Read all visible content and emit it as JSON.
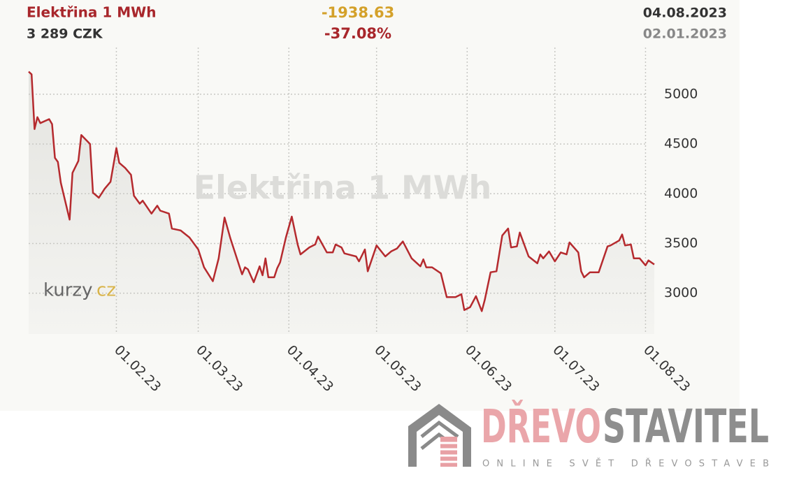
{
  "chart_data": {
    "type": "line",
    "title": "Elektřina 1 MWh",
    "price": "3 289 CZK",
    "change": "-1938.63",
    "change_percent": "-37.08%",
    "date_end": "04.08.2023",
    "date_start": "02.01.2023",
    "logo": [
      "kurzy",
      "cz"
    ],
    "x": [
      "2023-01-02",
      "2023-01-03",
      "2023-01-04",
      "2023-01-05",
      "2023-01-06",
      "2023-01-09",
      "2023-01-10",
      "2023-01-11",
      "2023-01-12",
      "2023-01-13",
      "2023-01-16",
      "2023-01-17",
      "2023-01-19",
      "2023-01-20",
      "2023-01-23",
      "2023-01-24",
      "2023-01-26",
      "2023-01-28",
      "2023-01-30",
      "2023-02-01",
      "2023-02-02",
      "2023-02-04",
      "2023-02-06",
      "2023-02-07",
      "2023-02-09",
      "2023-02-10",
      "2023-02-13",
      "2023-02-15",
      "2023-02-16",
      "2023-02-19",
      "2023-02-20",
      "2023-02-23",
      "2023-02-26",
      "2023-03-01",
      "2023-03-03",
      "2023-03-06",
      "2023-03-08",
      "2023-03-10",
      "2023-03-12",
      "2023-03-15",
      "2023-03-16",
      "2023-03-17",
      "2023-03-18",
      "2023-03-20",
      "2023-03-22",
      "2023-03-23",
      "2023-03-24",
      "2023-03-25",
      "2023-03-27",
      "2023-03-28",
      "2023-03-29",
      "2023-03-31",
      "2023-04-02",
      "2023-04-04",
      "2023-04-05",
      "2023-04-08",
      "2023-04-10",
      "2023-04-11",
      "2023-04-14",
      "2023-04-16",
      "2023-04-17",
      "2023-04-19",
      "2023-04-20",
      "2023-04-24",
      "2023-04-25",
      "2023-04-27",
      "2023-04-28",
      "2023-05-01",
      "2023-05-04",
      "2023-05-06",
      "2023-05-08",
      "2023-05-10",
      "2023-05-13",
      "2023-05-16",
      "2023-05-17",
      "2023-05-18",
      "2023-05-20",
      "2023-05-23",
      "2023-05-25",
      "2023-05-28",
      "2023-05-30",
      "2023-05-31",
      "2023-06-02",
      "2023-06-04",
      "2023-06-06",
      "2023-06-07",
      "2023-06-09",
      "2023-06-11",
      "2023-06-13",
      "2023-06-15",
      "2023-06-16",
      "2023-06-18",
      "2023-06-19",
      "2023-06-22",
      "2023-06-25",
      "2023-06-26",
      "2023-06-27",
      "2023-06-29",
      "2023-07-01",
      "2023-07-03",
      "2023-07-05",
      "2023-07-06",
      "2023-07-09",
      "2023-07-10",
      "2023-07-11",
      "2023-07-13",
      "2023-07-16",
      "2023-07-19",
      "2023-07-20",
      "2023-07-23",
      "2023-07-24",
      "2023-07-25",
      "2023-07-27",
      "2023-07-28",
      "2023-07-30",
      "2023-08-01",
      "2023-08-02",
      "2023-08-04"
    ],
    "series": [
      {
        "name": "Elektřina 1 MWh",
        "color": "#b52a2e",
        "values": [
          5227.63,
          5200,
          4650,
          4770,
          4710,
          4750,
          4700,
          4360,
          4320,
          4110,
          3740,
          4210,
          4330,
          4590,
          4500,
          4010,
          3960,
          4050,
          4120,
          4460,
          4310,
          4260,
          4190,
          3980,
          3900,
          3930,
          3800,
          3880,
          3830,
          3800,
          3650,
          3630,
          3560,
          3440,
          3260,
          3120,
          3350,
          3760,
          3550,
          3280,
          3190,
          3260,
          3240,
          3110,
          3270,
          3180,
          3350,
          3160,
          3160,
          3250,
          3310,
          3560,
          3770,
          3490,
          3390,
          3460,
          3490,
          3570,
          3410,
          3410,
          3490,
          3460,
          3400,
          3370,
          3320,
          3440,
          3220,
          3480,
          3370,
          3420,
          3450,
          3520,
          3350,
          3270,
          3340,
          3260,
          3260,
          3200,
          2960,
          2960,
          2990,
          2830,
          2860,
          2970,
          2820,
          2930,
          3210,
          3220,
          3580,
          3650,
          3460,
          3470,
          3610,
          3370,
          3300,
          3390,
          3350,
          3420,
          3320,
          3410,
          3390,
          3510,
          3410,
          3220,
          3160,
          3210,
          3210,
          3470,
          3480,
          3530,
          3590,
          3480,
          3490,
          3350,
          3350,
          3280,
          3330,
          3289
        ]
      }
    ],
    "xlim": [
      "2023-01-02",
      "2023-08-04"
    ],
    "xticks": [
      {
        "value": "2023-02-01",
        "label": "01.02.23"
      },
      {
        "value": "2023-03-01",
        "label": "01.03.23"
      },
      {
        "value": "2023-04-01",
        "label": "01.04.23"
      },
      {
        "value": "2023-05-01",
        "label": "01.05.23"
      },
      {
        "value": "2023-06-01",
        "label": "01.06.23"
      },
      {
        "value": "2023-07-01",
        "label": "01.07.23"
      },
      {
        "value": "2023-08-01",
        "label": "01.08.23"
      }
    ],
    "ylim": [
      2590,
      5470
    ],
    "yticks": [
      3000,
      3500,
      4000,
      4500,
      5000
    ],
    "grid": true
  },
  "brand": {
    "name_part1": "DŘEVO",
    "name_part2": "STAVITEL",
    "tagline": "ONLINE SVĚT DŘEVOSTAVEB"
  }
}
